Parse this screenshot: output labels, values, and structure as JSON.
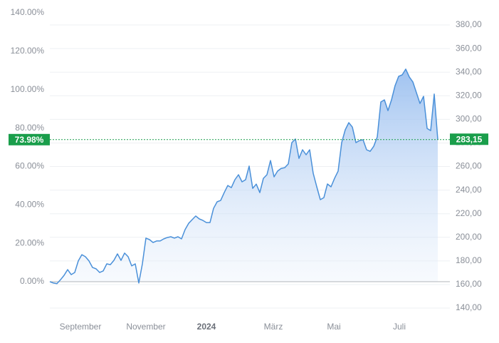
{
  "chart_data": {
    "type": "line",
    "series": [
      {
        "color": "#4a90d9",
        "values": [
          0,
          -0.7,
          -1,
          1,
          3.3,
          6.3,
          3.7,
          4.8,
          10.8,
          14.1,
          13,
          10.8,
          7.4,
          6.7,
          4.8,
          5.6,
          9.3,
          8.9,
          11.1,
          14.5,
          11.1,
          14.9,
          13,
          8.2,
          9.3,
          -0.7,
          9.3,
          22.7,
          21.9,
          20.4,
          21.2,
          21.2,
          22.3,
          23,
          23.4,
          22.7,
          23.4,
          22.3,
          27.1,
          30.4,
          32.3,
          34.2,
          32.7,
          31.9,
          30.8,
          30.8,
          38.2,
          41.6,
          42.3,
          46.4,
          50.1,
          49,
          53.1,
          55.7,
          52,
          53.1,
          60.2,
          48.6,
          50.8,
          46.4,
          53.8,
          55.7,
          63.1,
          54.6,
          57.6,
          59,
          59.4,
          61.3,
          72.4,
          74.3,
          64.2,
          68.7,
          66.1,
          68.7,
          56.4,
          49.4,
          42.7,
          43.8,
          50.9,
          49.4,
          53.8,
          57.6,
          72.4,
          79.1,
          82.8,
          80.5,
          72.4,
          73.5,
          73.9,
          68.7,
          67.9,
          70.5,
          75.4,
          93.6,
          94.7,
          89.1,
          94.7,
          102.1,
          106.9,
          107.7,
          110.7,
          106.6,
          104,
          98.4,
          92.8,
          96.5,
          79.8,
          78.7,
          97.7,
          73.98
        ]
      }
    ],
    "xlim": [
      0,
      112.4
    ],
    "xticks": [
      {
        "value": 8.6,
        "label": "September"
      },
      {
        "value": 27,
        "label": "November"
      },
      {
        "value": 44,
        "label": "2024"
      },
      {
        "value": 62.8,
        "label": "März"
      },
      {
        "value": 79.8,
        "label": "Mai"
      },
      {
        "value": 98.2,
        "label": "Juli"
      }
    ],
    "ylim": [
      -16.7,
      140
    ],
    "yticks": [
      {
        "value": 0,
        "label": "0.00%"
      },
      {
        "value": 20,
        "label": "20.00%"
      },
      {
        "value": 40,
        "label": "40.00%"
      },
      {
        "value": 60,
        "label": "60.00%"
      },
      {
        "value": 80,
        "label": "80.00%"
      },
      {
        "value": 100,
        "label": "100.00%"
      },
      {
        "value": 120,
        "label": "120.00%"
      },
      {
        "value": 140,
        "label": "140.00%"
      }
    ],
    "y2lim": [
      135.2,
      390.3
    ],
    "y2ticks": [
      {
        "value": 140,
        "label": "140,00"
      },
      {
        "value": 160,
        "label": "160,00"
      },
      {
        "value": 180,
        "label": "180,00"
      },
      {
        "value": 200,
        "label": "200,00"
      },
      {
        "value": 220,
        "label": "220,00"
      },
      {
        "value": 240,
        "label": "240,00"
      },
      {
        "value": 260,
        "label": "260,00"
      },
      {
        "value": 280,
        "label": "280,00"
      },
      {
        "value": 300,
        "label": "300,00"
      },
      {
        "value": 320,
        "label": "320,00"
      },
      {
        "value": 340,
        "label": "340,00"
      },
      {
        "value": 360,
        "label": "360,00"
      },
      {
        "value": 380,
        "label": "380,00"
      }
    ],
    "current": {
      "value": 73.98,
      "label": "73.98%"
    },
    "current_price": {
      "value": 283.15,
      "label": "283,15"
    },
    "marker_color": "#1a9e4b",
    "grid": true
  }
}
